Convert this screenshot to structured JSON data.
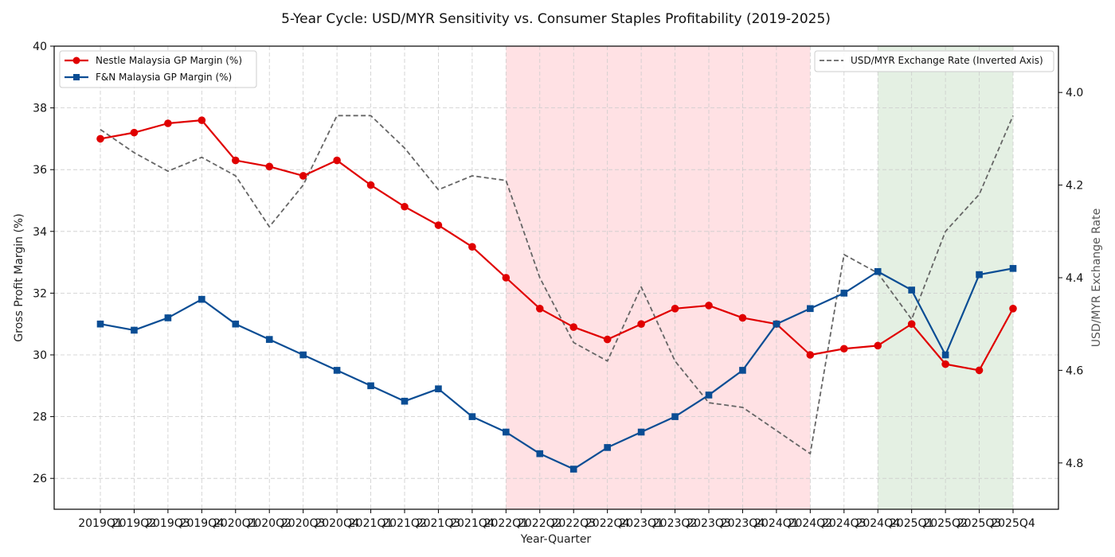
{
  "chart_data": {
    "type": "line",
    "title": "5-Year Cycle: USD/MYR Sensitivity vs. Consumer Staples Profitability (2019-2025)",
    "xlabel": "Year-Quarter",
    "ylabel": "Gross Profit Margin (%)",
    "ylabel_right": "USD/MYR Exchange Rate",
    "categories": [
      "2019Q1",
      "2019Q2",
      "2019Q3",
      "2019Q4",
      "2020Q1",
      "2020Q2",
      "2020Q3",
      "2020Q4",
      "2021Q1",
      "2021Q2",
      "2021Q3",
      "2021Q4",
      "2022Q1",
      "2022Q2",
      "2022Q3",
      "2022Q4",
      "2023Q1",
      "2023Q2",
      "2023Q3",
      "2023Q4",
      "2024Q1",
      "2024Q2",
      "2024Q3",
      "2024Q4",
      "2025Q1",
      "2025Q2",
      "2025Q3",
      "2025Q4"
    ],
    "ylim": [
      25,
      40
    ],
    "yticks": [
      "26",
      "28",
      "30",
      "32",
      "34",
      "36",
      "38",
      "40"
    ],
    "ylim_right": [
      3.9,
      4.9
    ],
    "right_axis_inverted": true,
    "yticks_right": [
      "4.0",
      "4.2",
      "4.4",
      "4.6",
      "4.8"
    ],
    "grid": true,
    "series": [
      {
        "name": "Nestle Malaysia GP Margin (%)",
        "axis": "left",
        "color": "#e00000",
        "marker": "circle",
        "style": "solid",
        "values": [
          37.0,
          37.2,
          37.5,
          37.6,
          36.3,
          36.1,
          35.8,
          36.3,
          35.5,
          34.8,
          34.2,
          33.5,
          32.5,
          31.5,
          30.9,
          30.5,
          31.0,
          31.5,
          31.6,
          31.2,
          31.0,
          30.0,
          30.2,
          30.3,
          31.0,
          29.7,
          29.5,
          31.5
        ]
      },
      {
        "name": "F&N Malaysia GP Margin (%)",
        "axis": "left",
        "color": "#0a4d94",
        "marker": "square",
        "style": "solid",
        "values": [
          31.0,
          30.8,
          31.2,
          31.8,
          31.0,
          30.5,
          30.0,
          29.5,
          29.0,
          28.5,
          28.9,
          28.0,
          27.5,
          26.8,
          26.3,
          27.0,
          27.5,
          28.0,
          28.7,
          29.5,
          31.0,
          31.5,
          32.0,
          32.7,
          32.1,
          30.0,
          32.6,
          32.8
        ]
      },
      {
        "name": "USD/MYR Exchange Rate (Inverted Axis)",
        "axis": "right",
        "color": "#666666",
        "marker": "none",
        "style": "dashed",
        "values": [
          4.08,
          4.13,
          4.17,
          4.14,
          4.18,
          4.29,
          4.2,
          4.05,
          4.05,
          4.12,
          4.21,
          4.18,
          4.19,
          4.4,
          4.54,
          4.58,
          4.42,
          4.58,
          4.67,
          4.68,
          4.73,
          4.78,
          4.35,
          4.39,
          4.49,
          4.3,
          4.22,
          4.05
        ]
      }
    ],
    "shaded_regions": [
      {
        "from": "2022Q1",
        "to": "2024Q2",
        "color": "#ffe1e4"
      },
      {
        "from": "2024Q4",
        "to": "2025Q4",
        "color": "#e4f0e3"
      }
    ],
    "legend": [
      {
        "position": "top-left",
        "entries": [
          "Nestle Malaysia GP Margin (%)",
          "F&N Malaysia GP Margin (%)"
        ]
      },
      {
        "position": "top-right",
        "entries": [
          "USD/MYR Exchange Rate (Inverted Axis)"
        ]
      }
    ]
  }
}
